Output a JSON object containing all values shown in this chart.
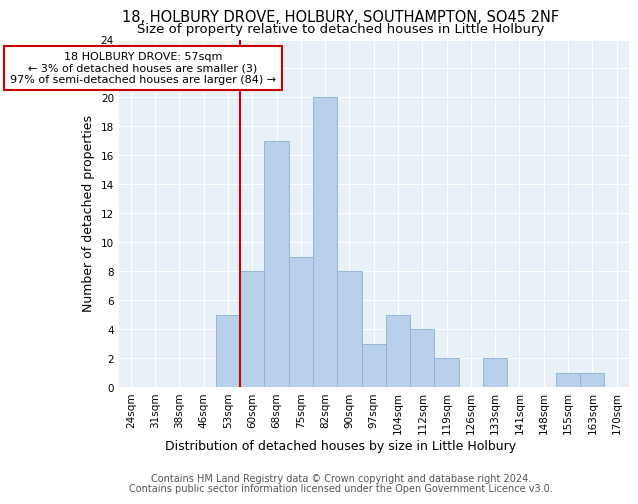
{
  "title1": "18, HOLBURY DROVE, HOLBURY, SOUTHAMPTON, SO45 2NF",
  "title2": "Size of property relative to detached houses in Little Holbury",
  "xlabel": "Distribution of detached houses by size in Little Holbury",
  "ylabel": "Number of detached properties",
  "categories": [
    "24sqm",
    "31sqm",
    "38sqm",
    "46sqm",
    "53sqm",
    "60sqm",
    "68sqm",
    "75sqm",
    "82sqm",
    "90sqm",
    "97sqm",
    "104sqm",
    "112sqm",
    "119sqm",
    "126sqm",
    "133sqm",
    "141sqm",
    "148sqm",
    "155sqm",
    "163sqm",
    "170sqm"
  ],
  "values": [
    0,
    0,
    0,
    0,
    5,
    8,
    17,
    9,
    20,
    8,
    3,
    5,
    4,
    2,
    0,
    2,
    0,
    0,
    1,
    1,
    0
  ],
  "bar_color": "#b8d0ea",
  "bar_edge_color": "#8aafd4",
  "vline_x": 4.5,
  "vline_color": "#cc0000",
  "annotation_box_text": "18 HOLBURY DROVE: 57sqm\n← 3% of detached houses are smaller (3)\n97% of semi-detached houses are larger (84) →",
  "annotation_box_color": "#cc0000",
  "ylim": [
    0,
    24
  ],
  "yticks": [
    0,
    2,
    4,
    6,
    8,
    10,
    12,
    14,
    16,
    18,
    20,
    22,
    24
  ],
  "footer1": "Contains HM Land Registry data © Crown copyright and database right 2024.",
  "footer2": "Contains public sector information licensed under the Open Government Licence v3.0.",
  "bg_color": "#e8f0f8",
  "title1_fontsize": 10.5,
  "title2_fontsize": 9.5,
  "ylabel_fontsize": 9,
  "xlabel_fontsize": 9,
  "tick_fontsize": 7.5,
  "annot_fontsize": 8,
  "footer_fontsize": 7
}
